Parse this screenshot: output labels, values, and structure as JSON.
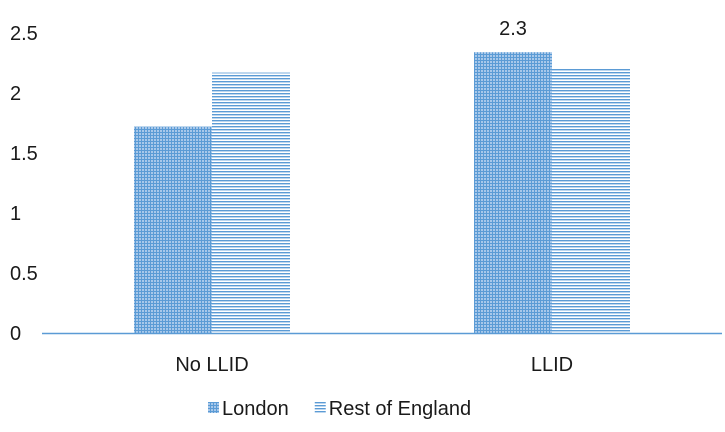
{
  "chart_data": {
    "type": "bar",
    "categories": [
      "No LLID",
      "LLID"
    ],
    "series": [
      {
        "name": "London",
        "values": [
          1.72,
          2.34
        ],
        "color": "#5b9bd5",
        "pattern": "grid"
      },
      {
        "name": "Rest of England",
        "values": [
          2.17,
          2.2
        ],
        "color": "#5b9bd5",
        "pattern": "horizontal-lines"
      }
    ],
    "ylim": [
      0,
      2.5
    ],
    "yticks": [
      "0",
      "0.5",
      "1",
      "1.5",
      "2",
      "2.5"
    ],
    "data_labels": [
      {
        "category": "LLID",
        "series": "London",
        "text": "2.3"
      }
    ],
    "grid": false,
    "legend": "bottom",
    "axis_color": "#5b9bd5"
  }
}
